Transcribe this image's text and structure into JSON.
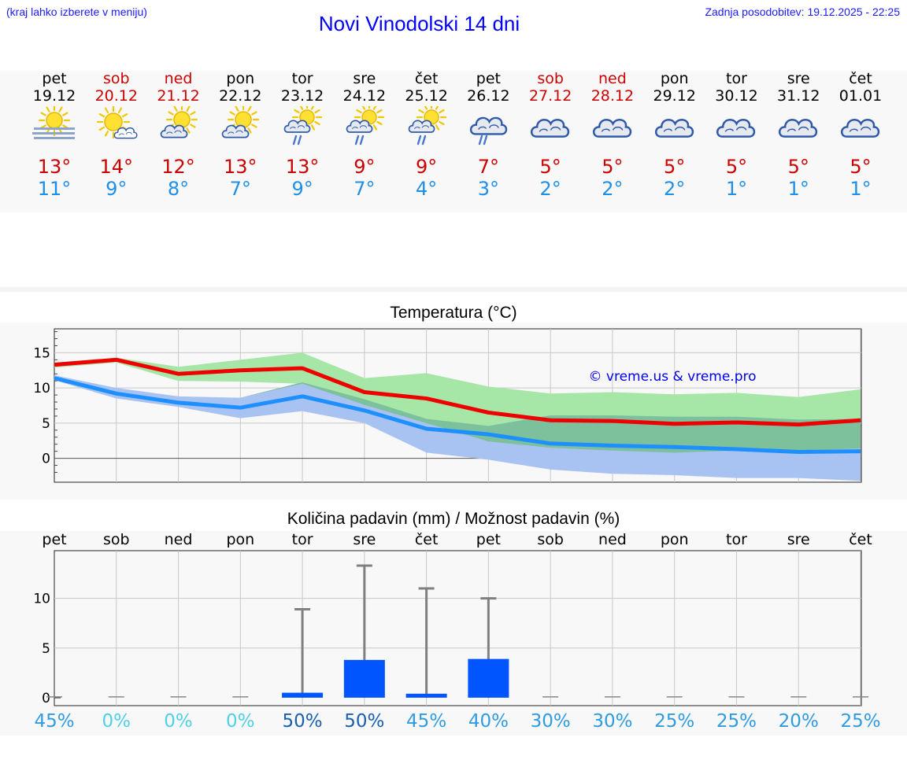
{
  "header": {
    "hint": "(kraj lahko izberete v meniju)",
    "title": "Novi Vinodolski 14 dni",
    "updated": "Zadnja posodobitev: 19.12.2025 - 22:25"
  },
  "days": [
    {
      "name": "pet",
      "date": "19.12",
      "weekend": false,
      "icon": "sun-fog-icon",
      "tmax": "13°",
      "tmin": "11°"
    },
    {
      "name": "sob",
      "date": "20.12",
      "weekend": true,
      "icon": "sun-small-cloud-icon",
      "tmax": "14°",
      "tmin": "9°"
    },
    {
      "name": "ned",
      "date": "21.12",
      "weekend": true,
      "icon": "sun-cloud-icon",
      "tmax": "12°",
      "tmin": "8°"
    },
    {
      "name": "pon",
      "date": "22.12",
      "weekend": false,
      "icon": "sun-cloud-icon",
      "tmax": "13°",
      "tmin": "7°"
    },
    {
      "name": "tor",
      "date": "23.12",
      "weekend": false,
      "icon": "sun-cloud-rain-icon",
      "tmax": "13°",
      "tmin": "9°"
    },
    {
      "name": "sre",
      "date": "24.12",
      "weekend": false,
      "icon": "sun-cloud-rain-icon",
      "tmax": "9°",
      "tmin": "7°"
    },
    {
      "name": "čet",
      "date": "25.12",
      "weekend": false,
      "icon": "sun-cloud-rain-icon",
      "tmax": "9°",
      "tmin": "4°"
    },
    {
      "name": "pet",
      "date": "26.12",
      "weekend": false,
      "icon": "cloud-rain-icon",
      "tmax": "7°",
      "tmin": "3°"
    },
    {
      "name": "sob",
      "date": "27.12",
      "weekend": true,
      "icon": "cloud-icon",
      "tmax": "5°",
      "tmin": "2°"
    },
    {
      "name": "ned",
      "date": "28.12",
      "weekend": true,
      "icon": "cloud-icon",
      "tmax": "5°",
      "tmin": "2°"
    },
    {
      "name": "pon",
      "date": "29.12",
      "weekend": false,
      "icon": "cloud-icon",
      "tmax": "5°",
      "tmin": "2°"
    },
    {
      "name": "tor",
      "date": "30.12",
      "weekend": false,
      "icon": "cloud-icon",
      "tmax": "5°",
      "tmin": "1°"
    },
    {
      "name": "sre",
      "date": "31.12",
      "weekend": false,
      "icon": "cloud-icon",
      "tmax": "5°",
      "tmin": "1°"
    },
    {
      "name": "čet",
      "date": "01.01",
      "weekend": false,
      "icon": "cloud-icon",
      "tmax": "5°",
      "tmin": "1°"
    }
  ],
  "colors": {
    "red": "#ee0000",
    "blue": "#1e8fff",
    "green_band": "#a6e6a6",
    "blue_band": "#a8c2f2",
    "overlap_band": "#7cc09c",
    "bar": "#0055ff",
    "whisker": "#808080"
  },
  "chart_data": [
    {
      "type": "line",
      "title": "Temperatura (°C)",
      "watermark": "© vreme.us & vreme.pro",
      "x": [
        0,
        1,
        2,
        3,
        4,
        5,
        6,
        7,
        8,
        9,
        10,
        11,
        12,
        13
      ],
      "ylim": [
        -3.4,
        18.4
      ],
      "yticks": [
        0,
        5,
        10,
        15
      ],
      "grid": true,
      "series": [
        {
          "name": "max",
          "color": "#ee0000",
          "values": [
            13.3,
            14.0,
            12.0,
            12.5,
            12.8,
            9.4,
            8.5,
            6.5,
            5.4,
            5.3,
            4.9,
            5.1,
            4.8,
            5.4
          ]
        },
        {
          "name": "min",
          "color": "#1e8fff",
          "values": [
            11.4,
            9.2,
            7.9,
            7.2,
            8.8,
            6.8,
            4.2,
            3.4,
            2.1,
            1.8,
            1.6,
            1.3,
            0.9,
            1.0
          ]
        }
      ],
      "bands": [
        {
          "name": "max-range",
          "color": "#a6e6a6",
          "upper": [
            13.6,
            14.3,
            13.0,
            14.0,
            15.0,
            11.4,
            12.1,
            10.2,
            9.2,
            9.4,
            9.1,
            9.3,
            8.7,
            9.8
          ],
          "lower": [
            12.9,
            13.6,
            11.0,
            10.9,
            10.6,
            7.6,
            5.0,
            2.4,
            1.5,
            1.1,
            0.8,
            1.1,
            1.1,
            1.4
          ]
        },
        {
          "name": "min-range",
          "color": "#a8c2f2",
          "upper": [
            11.8,
            10.0,
            8.8,
            8.6,
            10.8,
            8.4,
            5.6,
            4.6,
            6.1,
            6.1,
            5.9,
            5.9,
            5.5,
            5.6
          ],
          "lower": [
            11.1,
            8.5,
            7.3,
            5.7,
            6.7,
            5.0,
            0.8,
            -0.2,
            -1.6,
            -2.2,
            -2.4,
            -2.8,
            -2.8,
            -3.2
          ]
        }
      ]
    },
    {
      "type": "bar",
      "title": "Količina padavin (mm) / Možnost padavin (%)",
      "categories": [
        "pet",
        "sob",
        "ned",
        "pon",
        "tor",
        "sre",
        "čet",
        "pet",
        "sob",
        "ned",
        "pon",
        "tor",
        "sre",
        "čet"
      ],
      "values": [
        0,
        0,
        0,
        0,
        0.5,
        3.8,
        0.4,
        3.9,
        0,
        0,
        0,
        0,
        0,
        0
      ],
      "error_max": [
        0,
        0,
        0,
        0,
        8.9,
        13.3,
        11.0,
        10.0,
        0,
        0,
        0,
        0,
        0,
        0
      ],
      "ylim": [
        -0.8,
        14.8
      ],
      "yticks": [
        0,
        5,
        10
      ],
      "probability": [
        "45%",
        "0%",
        "0%",
        "0%",
        "50%",
        "50%",
        "45%",
        "40%",
        "30%",
        "30%",
        "25%",
        "25%",
        "20%",
        "25%"
      ],
      "probability_values": [
        45,
        0,
        0,
        0,
        50,
        50,
        45,
        40,
        30,
        30,
        25,
        25,
        20,
        25
      ]
    }
  ]
}
